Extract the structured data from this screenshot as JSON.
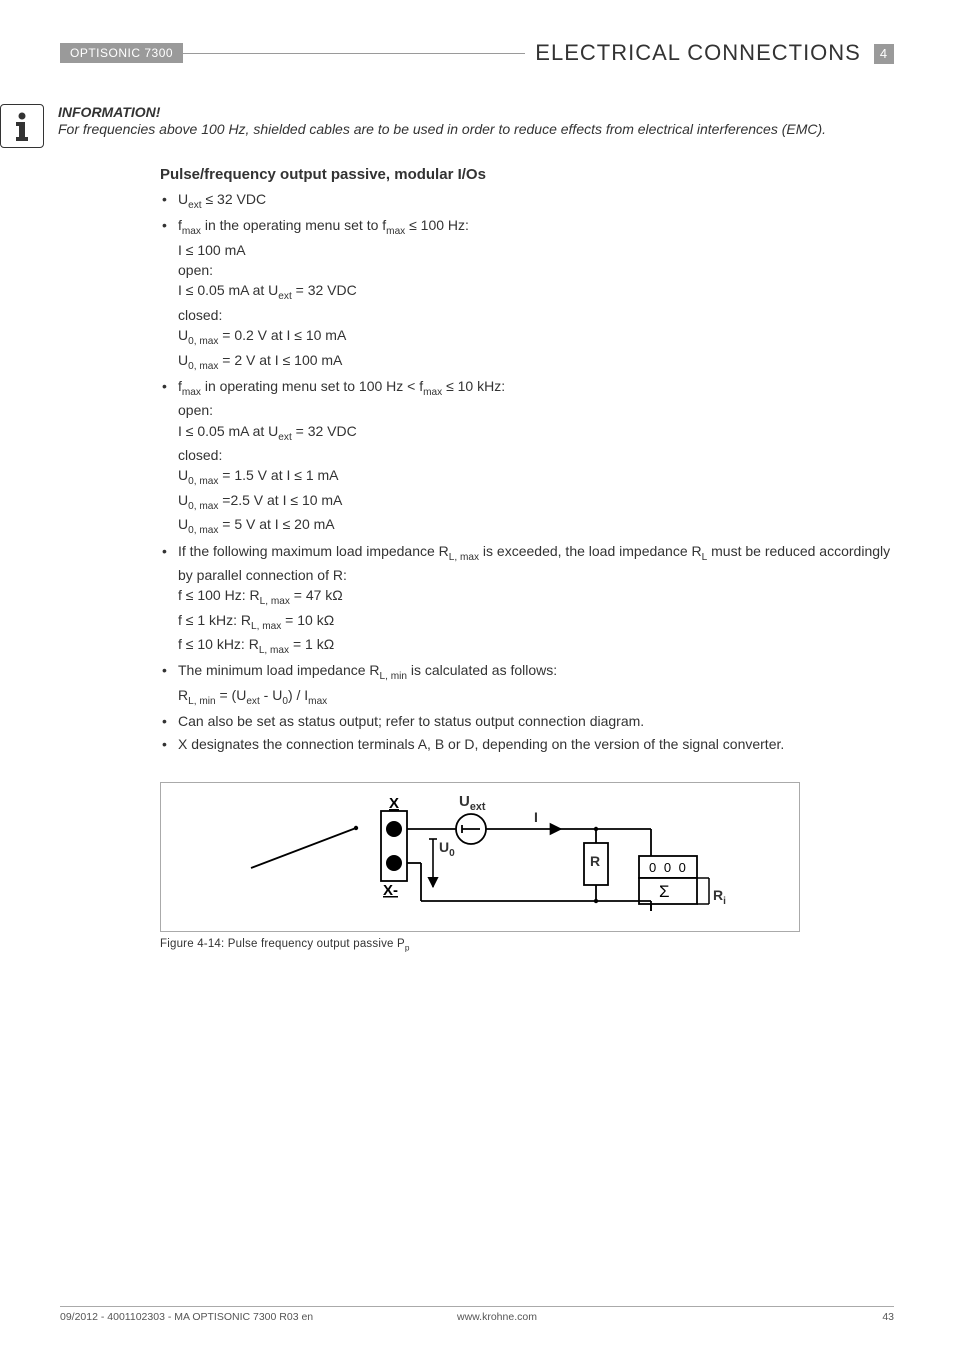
{
  "header": {
    "product": "OPTISONIC 7300",
    "title": "ELECTRICAL CONNECTIONS",
    "chapter": "4"
  },
  "info": {
    "heading": "INFORMATION!",
    "body": "For frequencies above 100 Hz, shielded cables are to be used in order to reduce effects from electrical interferences (EMC)."
  },
  "section_heading": "Pulse/frequency output passive, modular I/Os",
  "b1": {
    "line": "U<sub>ext</sub> ≤ 32 VDC"
  },
  "b2": {
    "line": "f<sub>max</sub> in the operating menu set to f<sub>max</sub> ≤ 100 Hz:",
    "s1": "I ≤ 100 mA",
    "s2": "open:",
    "s3": "I ≤ 0.05 mA at U<sub>ext</sub> = 32 VDC",
    "s4": "closed:",
    "s5": "U<sub>0, max</sub> = 0.2 V at I ≤ 10 mA",
    "s6": "U<sub>0, max</sub> = 2 V at I ≤ 100 mA"
  },
  "b3": {
    "line": "f<sub>max</sub> in operating menu set to 100 Hz < f<sub>max</sub> ≤ 10 kHz:",
    "s1": "open:",
    "s2": "I ≤ 0.05 mA at U<sub>ext</sub> = 32 VDC",
    "s3": "closed:",
    "s4": "U<sub>0, max</sub> = 1.5 V at I ≤ 1 mA",
    "s5": "U<sub>0, max</sub> =2.5 V at I ≤ 10 mA",
    "s6": "U<sub>0, max</sub> = 5 V at I ≤ 20 mA"
  },
  "b4": {
    "line": "If the following maximum load impedance R<sub>L, max</sub> is exceeded, the load impedance R<sub>L</sub> must be reduced accordingly by parallel connection of R:",
    "s1": "f ≤ 100 Hz: R<sub>L, max</sub> = 47 kΩ",
    "s2": "f ≤ 1 kHz: R<sub>L, max</sub> = 10 kΩ",
    "s3": "f ≤ 10 kHz: R<sub>L, max</sub> = 1 kΩ"
  },
  "b5": {
    "line": "The minimum load impedance R<sub>L, min</sub> is calculated as follows:",
    "s1": "R<sub>L, min</sub> = (U<sub>ext</sub> - U<sub>0</sub>) / I<sub>max</sub>"
  },
  "b6": {
    "line": "Can also be set as status output; refer to status output connection diagram."
  },
  "b7": {
    "line": "X designates the connection terminals A, B or D, depending on the version of the signal converter."
  },
  "figure": {
    "labels": {
      "x": "X",
      "xminus": "X-",
      "uext": "U<sub>ext</sub>",
      "u0": "U<sub>0</sub>",
      "i": "I",
      "r": "R",
      "counter": "0 0 0",
      "sigma": "Σ",
      "ri": "R<sub>i</sub>"
    },
    "caption": "Figure 4-14: Pulse frequency output passive P<sub>p</sub>"
  },
  "footer": {
    "left": "09/2012 - 4001102303 - MA OPTISONIC 7300 R03 en",
    "mid": "www.krohne.com",
    "page": "43"
  }
}
